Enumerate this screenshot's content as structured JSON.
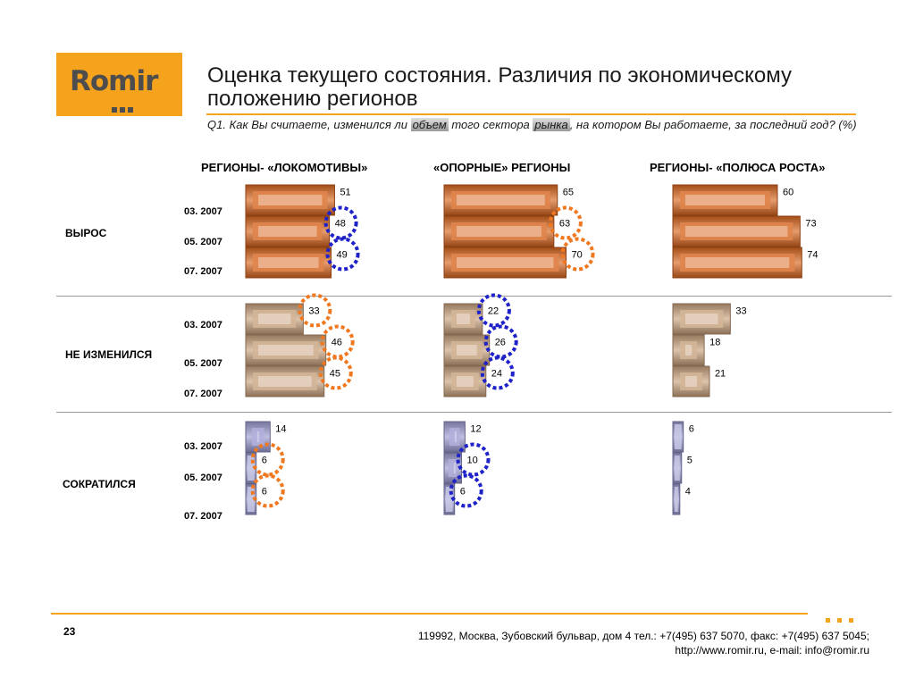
{
  "logo": {
    "text": "Romir"
  },
  "title": "Оценка текущего состояния. Различия по экономическому положению регионов",
  "question": {
    "part1": "Q1. Как Вы считаете, изменился ли ",
    "hl1": "объем",
    "part2": " того сектора ",
    "hl2": "рынка",
    "part3": ", на котором Вы работаете, за последний год? (%)"
  },
  "columns": [
    "РЕГИОНЫ- «ЛОКОМОТИВЫ»",
    "«ОПОРНЫЕ» РЕГИОНЫ",
    "РЕГИОНЫ- «ПОЛЮСА РОСТА»"
  ],
  "rows": [
    {
      "label": "ВЫРОС"
    },
    {
      "label": "НЕ ИЗМЕНИЛСЯ"
    },
    {
      "label": "СОКРАТИЛСЯ"
    }
  ],
  "chart_data": {
    "type": "bar",
    "orientation": "horizontal",
    "unit": "%",
    "periods": [
      "03. 2007",
      "05. 2007",
      "07. 2007"
    ],
    "groups": [
      "ВЫРОС",
      "НЕ ИЗМЕНИЛСЯ",
      "СОКРАТИЛСЯ"
    ],
    "series": [
      {
        "name": "РЕГИОНЫ- «ЛОКОМОТИВЫ»",
        "values": [
          [
            51,
            48,
            49
          ],
          [
            33,
            46,
            45
          ],
          [
            14,
            6,
            6
          ]
        ]
      },
      {
        "name": "«ОПОРНЫЕ» РЕГИОНЫ",
        "values": [
          [
            65,
            63,
            70
          ],
          [
            22,
            26,
            24
          ],
          [
            12,
            10,
            6
          ]
        ]
      },
      {
        "name": "РЕГИОНЫ- «ПОЛЮСА РОСТА»",
        "values": [
          [
            60,
            73,
            74
          ],
          [
            33,
            18,
            21
          ],
          [
            6,
            5,
            4
          ]
        ]
      }
    ],
    "highlights": {
      "orange": [
        [
          0,
          1,
          0
        ],
        [
          0,
          1,
          1
        ],
        [
          0,
          1,
          2
        ],
        [
          0,
          2,
          1
        ],
        [
          0,
          2,
          2
        ],
        [
          1,
          0,
          1
        ],
        [
          1,
          0,
          2
        ]
      ],
      "blue": [
        [
          0,
          0,
          1
        ],
        [
          0,
          0,
          2
        ],
        [
          1,
          1,
          0
        ],
        [
          1,
          1,
          1
        ],
        [
          1,
          1,
          2
        ],
        [
          1,
          2,
          1
        ],
        [
          1,
          2,
          2
        ]
      ]
    },
    "group_colors": [
      "#D9661F",
      "#C9A27E",
      "#9C9CD3"
    ],
    "highlight_colors": {
      "orange": "#F07820",
      "blue": "#1E22C8"
    }
  },
  "footer": {
    "page": "23",
    "address": "119992, Москва, Зубовский бульвар, дом 4   тел.: +7(495) 637 5070, факс: +7(495) 637 5045;",
    "contacts": "http://www.romir.ru, e-mail: info@romir.ru"
  }
}
